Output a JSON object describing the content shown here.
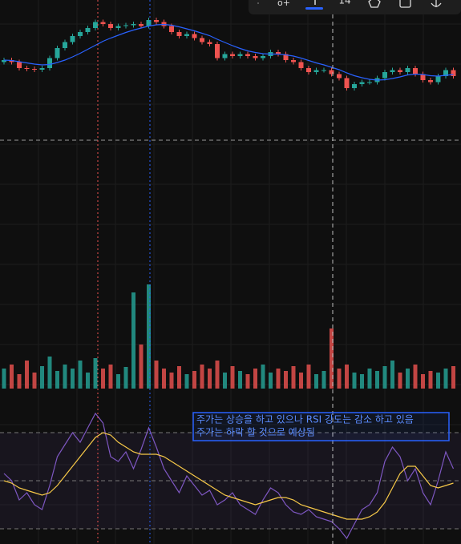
{
  "toolbar": {
    "interval": "14"
  },
  "chart_data": [
    {
      "type": "candlestick",
      "up_color": "#26a69a",
      "down_color": "#ef5350",
      "ylim": [
        80,
        115
      ],
      "open": [
        99.5,
        100,
        99.5,
        98,
        97.8,
        97.6,
        98,
        100.5,
        103,
        104.5,
        106,
        107,
        108,
        109.5,
        109,
        108,
        108.5,
        108.7,
        109,
        108.5,
        110,
        109.5,
        108.5,
        107,
        106,
        106.5,
        105.5,
        104.5,
        104,
        100.5,
        101.5,
        101,
        101.5,
        101,
        100.5,
        101,
        102,
        101.5,
        100,
        99.5,
        98,
        97,
        97.5,
        97.5,
        96.5,
        95.5,
        93,
        94,
        94.5,
        94.5,
        95.5,
        97,
        97.5,
        97,
        98,
        96.5,
        95,
        94.5,
        96,
        97.5
      ],
      "high": [
        100.6,
        100.6,
        100.1,
        98.6,
        98.4,
        98.6,
        101.1,
        103.6,
        105.1,
        106.6,
        107.6,
        108.6,
        110.1,
        110.1,
        109.6,
        109.1,
        109.3,
        109.6,
        109.6,
        110.6,
        110.6,
        110.1,
        109.1,
        107.6,
        107.1,
        107.1,
        106.1,
        105.1,
        104.6,
        102.1,
        102.1,
        102.1,
        102.1,
        101.6,
        101.6,
        102.6,
        102.6,
        102.1,
        100.6,
        100.1,
        98.6,
        98.1,
        98.1,
        98.1,
        97.1,
        96.1,
        94.6,
        95.1,
        95.1,
        96.1,
        97.6,
        98.1,
        98.1,
        98.6,
        98.6,
        97.1,
        95.6,
        96.6,
        98.1,
        98.1
      ],
      "low": [
        98.9,
        98.9,
        97.4,
        97.2,
        97,
        97,
        97.4,
        99.9,
        102.4,
        103.9,
        105.4,
        106.4,
        107.4,
        108.4,
        107.4,
        107.4,
        107.9,
        108.1,
        107.9,
        107.9,
        108.9,
        107.9,
        106.4,
        105.4,
        105.4,
        104.9,
        103.9,
        103.4,
        99.9,
        99.9,
        100.4,
        100.4,
        100.4,
        99.9,
        99.9,
        100.4,
        100.9,
        99.4,
        98.9,
        97.4,
        96.4,
        96.4,
        96.9,
        95.9,
        94.9,
        92.4,
        92.4,
        93.4,
        93.9,
        93.9,
        94.9,
        96.4,
        96.4,
        96.4,
        95.9,
        94.4,
        93.9,
        93.9,
        95.4,
        95.4
      ],
      "close": [
        100,
        99.5,
        98,
        97.8,
        97.6,
        98,
        100.5,
        103,
        104.5,
        106,
        107,
        108,
        109.5,
        109,
        108,
        108.5,
        108.7,
        109,
        108.5,
        110,
        109.5,
        108.5,
        107,
        106,
        106.5,
        105.5,
        104.5,
        104,
        100.5,
        101.5,
        101,
        101.5,
        101,
        100.5,
        101,
        102,
        101.5,
        100,
        99.5,
        98,
        97,
        97.5,
        97.5,
        96.5,
        95.5,
        93,
        94,
        94.5,
        94.5,
        95.5,
        97,
        97.5,
        97,
        98,
        96.5,
        95,
        94.5,
        96,
        97.5,
        96
      ],
      "series": [
        {
          "color": "#2962ff",
          "values": [
            100,
            99.9,
            99.6,
            99.3,
            99,
            98.8,
            98.9,
            99.4,
            100,
            100.8,
            101.7,
            102.7,
            103.7,
            104.7,
            105.5,
            106.2,
            106.9,
            107.5,
            108,
            108.5,
            108.8,
            108.9,
            108.7,
            108.3,
            107.8,
            107.3,
            106.7,
            106.1,
            105.2,
            104.4,
            103.6,
            102.9,
            102.3,
            101.9,
            101.6,
            101.5,
            101.5,
            101.3,
            101,
            100.5,
            99.9,
            99.3,
            98.8,
            98.2,
            97.6,
            96.8,
            96.1,
            95.6,
            95.2,
            95,
            95.1,
            95.4,
            95.8,
            96.3,
            96.5,
            96.4,
            96.1,
            96,
            96.2,
            96.4
          ]
        }
      ]
    },
    {
      "type": "bar",
      "ylim": [
        0,
        150
      ],
      "values": [
        25,
        30,
        18,
        35,
        20,
        28,
        40,
        22,
        30,
        25,
        35,
        20,
        38,
        25,
        30,
        18,
        27,
        120,
        55,
        130,
        35,
        25,
        20,
        28,
        18,
        22,
        30,
        25,
        35,
        20,
        28,
        22,
        18,
        25,
        30,
        20,
        25,
        22,
        28,
        20,
        30,
        18,
        22,
        75,
        25,
        30,
        20,
        18,
        25,
        22,
        28,
        35,
        20,
        25,
        30,
        18,
        22,
        20,
        25,
        28
      ]
    },
    {
      "type": "line",
      "ylim": [
        24,
        80
      ],
      "levels": [
        30,
        50,
        70
      ],
      "annotation": [
        "주가는 상승을 하고 있으나 RSI 강도는 감소 하고 있음",
        "주가는 하락 할 것으로 예상됨"
      ],
      "series": [
        {
          "color": "#7e57c2",
          "values": [
            53,
            50,
            42,
            45,
            40,
            38,
            48,
            60,
            65,
            70,
            66,
            72,
            78,
            74,
            60,
            58,
            62,
            55,
            63,
            72,
            64,
            55,
            50,
            45,
            52,
            48,
            44,
            46,
            40,
            42,
            45,
            40,
            38,
            36,
            42,
            47,
            45,
            40,
            37,
            36,
            38,
            35,
            34,
            33,
            30,
            26,
            32,
            38,
            40,
            45,
            58,
            64,
            60,
            50,
            55,
            45,
            40,
            50,
            62,
            55
          ]
        },
        {
          "color": "#f7c948",
          "values": [
            50,
            49,
            47,
            46,
            45,
            44,
            45,
            48,
            52,
            56,
            60,
            64,
            68,
            70,
            69,
            66,
            64,
            62,
            61,
            61,
            61,
            60,
            58,
            56,
            54,
            52,
            50,
            48,
            46,
            44,
            43,
            42,
            41,
            40,
            41,
            42,
            43,
            43,
            42,
            40,
            39,
            38,
            37,
            36,
            35,
            34,
            34,
            34,
            35,
            37,
            41,
            47,
            53,
            56,
            56,
            52,
            48,
            47,
            48,
            49
          ]
        }
      ]
    }
  ]
}
